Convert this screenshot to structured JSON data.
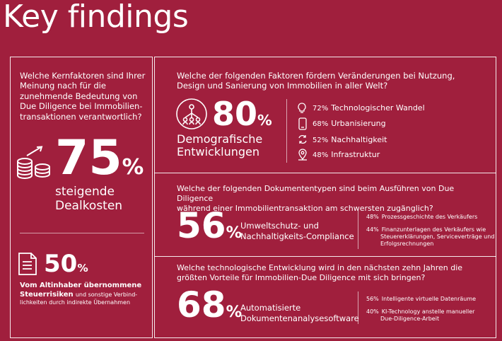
{
  "page": {
    "title": "Key findings"
  },
  "left": {
    "question": "Welche Kernfaktoren sind Ihrer Meinung nach für die zunehmende Bedeutung von Due Diligence bei Immobilien-transaktionen verantwortlich?",
    "stat1": {
      "value": "75",
      "unit": "%",
      "label_line1": "steigende",
      "label_line2": "Dealkosten",
      "icon": "coin-stack-growth-icon"
    },
    "stat2": {
      "value": "50",
      "unit": "%",
      "icon": "document-icon",
      "label_bold_line1": "Vom Altinhaber übernommene",
      "label_bold_line2": "Steuerrisiken",
      "label_rest_line1": "und sonstige Verbind-",
      "label_rest_line2": "lichkeiten durch indirekte Übernahmen"
    }
  },
  "top_right": {
    "question_line1": "Welche der folgenden Faktoren fördern Veränderungen bei Nutzung,",
    "question_line2": "Design und Sanierung von Immobilien in aller Welt?",
    "main": {
      "value": "80",
      "unit": "%",
      "label_line1": "Demografische",
      "label_line2": "Entwicklungen",
      "icon": "people-network-icon"
    },
    "factors": [
      {
        "pct": "72%",
        "label": "Technologischer Wandel",
        "icon": "lightbulb-icon"
      },
      {
        "pct": "68%",
        "label": "Urbanisierung",
        "icon": "phone-icon"
      },
      {
        "pct": "52%",
        "label": "Nachhaltigkeit",
        "icon": "recycle-icon"
      },
      {
        "pct": "48%",
        "label": "Infrastruktur",
        "icon": "location-pin-icon"
      }
    ]
  },
  "mid_right": {
    "question_line1": "Welche der folgenden Dokumententypen sind beim Ausführen von Due Diligence",
    "question_line2": "während einer Immobilientransaktion am schwersten zugänglich?",
    "main": {
      "value": "56",
      "unit": "%",
      "label_line1": "Umweltschutz- und",
      "label_line2": "Nachhaltigkeits-Compliance"
    },
    "items": [
      {
        "pct": "48%",
        "lines": [
          "Prozessgeschichte des Verkäufers"
        ]
      },
      {
        "pct": "44%",
        "lines": [
          "Finanzunterlagen des Verkäufers wie",
          "Steuererklärungen, Serviceverträge und",
          "Erfolgsrechnungen"
        ]
      }
    ]
  },
  "bottom_right": {
    "question_line1": "Welche technologische Entwicklung wird in den nächsten zehn Jahren die",
    "question_line2": "größten Vorteile für Immobilien-Due Diligence mit sich bringen?",
    "main": {
      "value": "68",
      "unit": "%",
      "label_line1": "Automatisierte",
      "label_line2": "Dokumentenanalysesoftware"
    },
    "items": [
      {
        "pct": "56%",
        "lines": [
          "Intelligente virtuelle Datenräume"
        ]
      },
      {
        "pct": "40%",
        "lines": [
          "KI-Technology anstelle manueller",
          "Due-Diligence-Arbeit"
        ]
      }
    ]
  }
}
